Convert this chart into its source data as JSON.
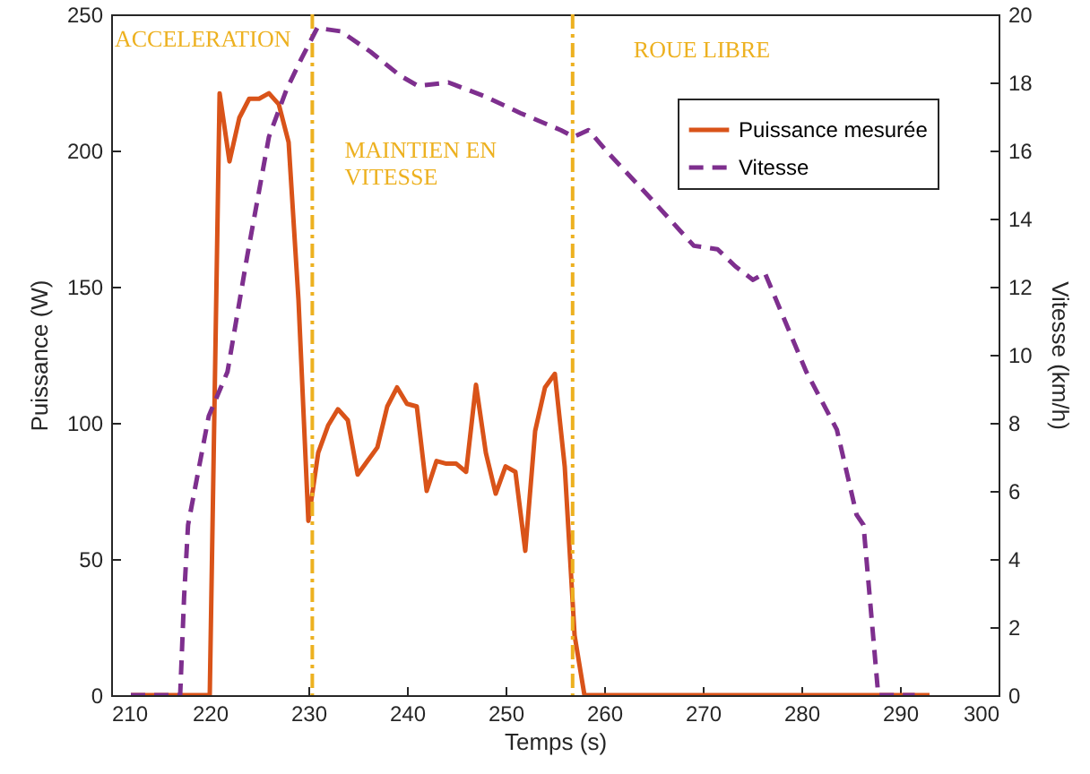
{
  "chart_data": {
    "type": "line",
    "xlabel": "Temps (s)",
    "ylabel": "Puissance (W)",
    "y2label": "Vitesse (km/h)",
    "xlim": [
      210,
      300
    ],
    "xticks": [
      210,
      220,
      230,
      240,
      250,
      260,
      270,
      280,
      290,
      300
    ],
    "ylim": [
      0,
      250
    ],
    "yticks": [
      0,
      50,
      100,
      150,
      200,
      250
    ],
    "y2lim": [
      0,
      20
    ],
    "y2ticks": [
      0,
      2,
      4,
      6,
      8,
      10,
      12,
      14,
      16,
      18,
      20
    ],
    "grid": false,
    "legend": "top right",
    "series": [
      {
        "name": "Puissance mesurée",
        "color": "#d95319",
        "line_style": "solid",
        "x": [
          212,
          220,
          221,
          222,
          223,
          224,
          225,
          226,
          227,
          228,
          229,
          230,
          231,
          232,
          233,
          234,
          235,
          236,
          237,
          238,
          239,
          240,
          241,
          242,
          243,
          244,
          245,
          246,
          247,
          248,
          249,
          250,
          251,
          252,
          253,
          254,
          255,
          256,
          257,
          258,
          293
        ],
        "values": [
          0,
          0,
          221,
          196,
          212,
          219,
          219,
          221,
          217,
          203,
          145,
          64,
          89,
          99,
          105,
          101,
          81,
          86,
          91,
          106,
          113,
          107,
          106,
          75,
          86,
          85,
          85,
          82,
          114,
          89,
          74,
          84,
          82,
          53,
          97,
          113,
          118,
          84,
          22,
          0,
          0
        ]
      },
      {
        "name": "Vitesse",
        "color": "#7e2f8e",
        "line_style": "dashed",
        "axis": "y2",
        "x": [
          212,
          217,
          217.4,
          217.8,
          219.9,
          221.8,
          223.8,
          226,
          227.8,
          229.3,
          230.9,
          233.3,
          236.3,
          239.3,
          241.1,
          244.2,
          247.8,
          251.5,
          255.6,
          256.9,
          258.4,
          260.5,
          264.7,
          269.1,
          271.5,
          273.3,
          275.1,
          276.3,
          280.5,
          283.6,
          285.6,
          286.3,
          287.8,
          291.5
        ],
        "values": [
          0,
          0,
          2.9,
          5.0,
          8.2,
          9.5,
          12.9,
          16.4,
          17.8,
          18.7,
          19.6,
          19.5,
          18.9,
          18.2,
          17.9,
          18.0,
          17.6,
          17.1,
          16.6,
          16.4,
          16.6,
          15.9,
          14.6,
          13.2,
          13.1,
          12.6,
          12.2,
          12.4,
          9.5,
          7.8,
          5.3,
          5.0,
          0,
          0
        ]
      }
    ],
    "ref_lines": [
      {
        "axis": "x",
        "value": 230.4,
        "color": "#edb120",
        "line_style": "dashed"
      },
      {
        "axis": "x",
        "value": 256.8,
        "color": "#edb120",
        "line_style": "dashed"
      }
    ],
    "annotations": [
      "ACCELERATION",
      "MAINTIEN EN\nVITESSE",
      "ROUE LIBRE"
    ]
  }
}
